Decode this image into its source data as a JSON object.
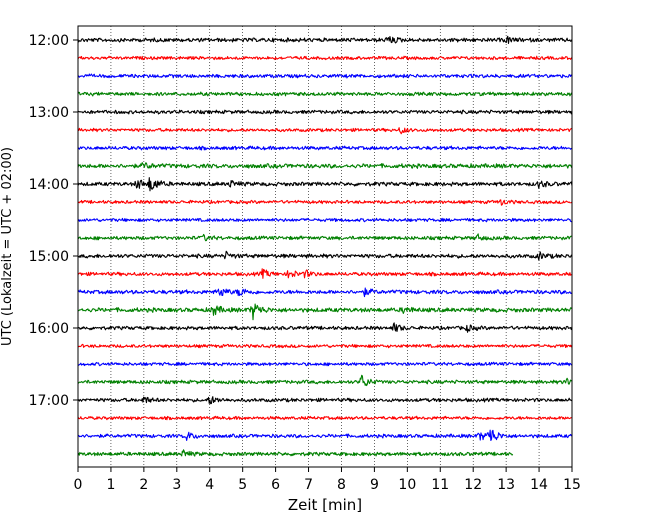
{
  "chart_data": {
    "type": "line",
    "title": "",
    "xlabel": "Zeit  [min]",
    "ylabel": "UTC (Lokalzeit = UTC + 02:00)",
    "xlim": [
      0,
      15
    ],
    "x_ticks": [
      "0",
      "1",
      "2",
      "3",
      "4",
      "5",
      "6",
      "7",
      "8",
      "9",
      "10",
      "11",
      "12",
      "13",
      "14",
      "15"
    ],
    "y_ticks": [
      "12:00",
      "13:00",
      "14:00",
      "15:00",
      "16:00",
      "17:00"
    ],
    "grid": "vertical-dotted",
    "colors": [
      "#000000",
      "#ff0000",
      "#0000ff",
      "#008000"
    ],
    "trace_interval_min": 15,
    "traces": [
      {
        "start": "12:00",
        "color": "#000000",
        "amp": 2.2,
        "end_min": 15,
        "events": [
          {
            "t": 9.4,
            "a": 4
          },
          {
            "t": 13.0,
            "a": 3
          }
        ]
      },
      {
        "start": "12:15",
        "color": "#ff0000",
        "amp": 1.8,
        "end_min": 15,
        "events": []
      },
      {
        "start": "12:30",
        "color": "#0000ff",
        "amp": 2.0,
        "end_min": 15,
        "events": []
      },
      {
        "start": "12:45",
        "color": "#008000",
        "amp": 2.0,
        "end_min": 15,
        "events": []
      },
      {
        "start": "13:00",
        "color": "#000000",
        "amp": 2.0,
        "end_min": 15,
        "events": []
      },
      {
        "start": "13:15",
        "color": "#ff0000",
        "amp": 1.8,
        "end_min": 15,
        "events": [
          {
            "t": 9.8,
            "a": 3
          }
        ]
      },
      {
        "start": "13:30",
        "color": "#0000ff",
        "amp": 2.0,
        "end_min": 15,
        "events": []
      },
      {
        "start": "13:45",
        "color": "#008000",
        "amp": 2.4,
        "end_min": 15,
        "events": [
          {
            "t": 2.0,
            "a": 3
          }
        ]
      },
      {
        "start": "14:00",
        "color": "#000000",
        "amp": 2.2,
        "end_min": 15,
        "events": [
          {
            "t": 2.2,
            "a": 8
          },
          {
            "t": 1.8,
            "a": 5
          },
          {
            "t": 4.6,
            "a": 3
          },
          {
            "t": 14.0,
            "a": 3
          }
        ]
      },
      {
        "start": "14:15",
        "color": "#ff0000",
        "amp": 1.8,
        "end_min": 15,
        "events": [
          {
            "t": 12.8,
            "a": 3
          }
        ]
      },
      {
        "start": "14:30",
        "color": "#0000ff",
        "amp": 1.8,
        "end_min": 15,
        "events": []
      },
      {
        "start": "14:45",
        "color": "#008000",
        "amp": 2.0,
        "end_min": 15,
        "events": [
          {
            "t": 12.1,
            "a": 3
          },
          {
            "t": 3.8,
            "a": 2.5
          }
        ]
      },
      {
        "start": "15:00",
        "color": "#000000",
        "amp": 2.2,
        "end_min": 15,
        "events": [
          {
            "t": 4.5,
            "a": 3
          },
          {
            "t": 14.0,
            "a": 3
          }
        ]
      },
      {
        "start": "15:15",
        "color": "#ff0000",
        "amp": 2.0,
        "end_min": 15,
        "events": [
          {
            "t": 5.6,
            "a": 4
          },
          {
            "t": 6.4,
            "a": 4
          },
          {
            "t": 6.9,
            "a": 3
          }
        ]
      },
      {
        "start": "15:30",
        "color": "#0000ff",
        "amp": 2.2,
        "end_min": 15,
        "events": [
          {
            "t": 4.3,
            "a": 5
          },
          {
            "t": 4.9,
            "a": 4
          },
          {
            "t": 8.7,
            "a": 3
          }
        ]
      },
      {
        "start": "15:45",
        "color": "#008000",
        "amp": 2.4,
        "end_min": 15,
        "events": [
          {
            "t": 5.3,
            "a": 9
          },
          {
            "t": 4.1,
            "a": 5
          },
          {
            "t": 9.9,
            "a": 3
          }
        ]
      },
      {
        "start": "16:00",
        "color": "#000000",
        "amp": 2.0,
        "end_min": 15,
        "events": [
          {
            "t": 9.6,
            "a": 4
          },
          {
            "t": 11.8,
            "a": 3
          }
        ]
      },
      {
        "start": "16:15",
        "color": "#ff0000",
        "amp": 1.8,
        "end_min": 15,
        "events": []
      },
      {
        "start": "16:30",
        "color": "#0000ff",
        "amp": 1.8,
        "end_min": 15,
        "events": []
      },
      {
        "start": "16:45",
        "color": "#008000",
        "amp": 2.0,
        "end_min": 15,
        "events": [
          {
            "t": 8.6,
            "a": 7
          },
          {
            "t": 14.8,
            "a": 3
          }
        ]
      },
      {
        "start": "17:00",
        "color": "#000000",
        "amp": 2.0,
        "end_min": 15,
        "events": [
          {
            "t": 2.0,
            "a": 3
          },
          {
            "t": 4.0,
            "a": 4
          }
        ]
      },
      {
        "start": "17:15",
        "color": "#ff0000",
        "amp": 1.8,
        "end_min": 15,
        "events": []
      },
      {
        "start": "17:30",
        "color": "#0000ff",
        "amp": 2.0,
        "end_min": 15,
        "events": [
          {
            "t": 3.3,
            "a": 4
          },
          {
            "t": 12.5,
            "a": 9
          },
          {
            "t": 12.2,
            "a": 4
          }
        ]
      },
      {
        "start": "17:45",
        "color": "#008000",
        "amp": 2.0,
        "end_min": 13.2,
        "events": [
          {
            "t": 3.2,
            "a": 3
          }
        ]
      }
    ]
  }
}
